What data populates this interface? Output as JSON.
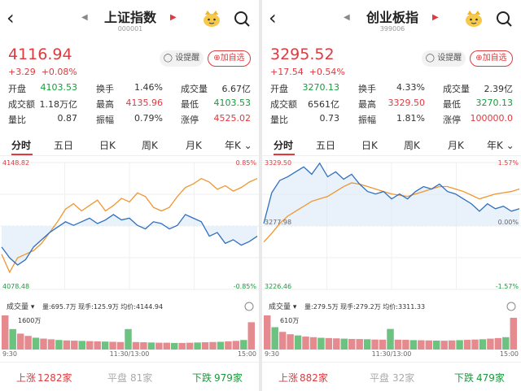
{
  "left": {
    "title": "上证指数",
    "code": "000001",
    "price": "4116.94",
    "change": "+3.29",
    "change_pct": "+0.08%",
    "remind_label": "设提醒",
    "fav_label": "加自选",
    "stats": [
      {
        "label": "开盘",
        "value": "4103.53",
        "color": "g"
      },
      {
        "label": "换手",
        "value": "1.46%",
        "color": "k"
      },
      {
        "label": "成交量",
        "value": "6.67亿",
        "color": "k"
      },
      {
        "label": "成交额",
        "value": "1.18万亿",
        "color": "k"
      },
      {
        "label": "最高",
        "value": "4135.96",
        "color": "r"
      },
      {
        "label": "最低",
        "value": "4103.53",
        "color": "g"
      },
      {
        "label": "量比",
        "value": "0.87",
        "color": "k"
      },
      {
        "label": "振幅",
        "value": "0.79%",
        "color": "k"
      },
      {
        "label": "涨停",
        "value": "4525.02",
        "color": "r"
      }
    ],
    "tabs": [
      "分时",
      "五日",
      "日K",
      "周K",
      "月K",
      "年K"
    ],
    "chart_data": {
      "type": "line",
      "y_max": "4148.82",
      "y_min": "4078.48",
      "pct_max": "0.85%",
      "pct_min": "-0.85%",
      "ylim": [
        4078.48,
        4148.82
      ],
      "series": [
        {
          "color": "#f0962f",
          "values": [
            4098,
            4088,
            4096,
            4098,
            4100,
            4104,
            4110,
            4116,
            4123,
            4126,
            4122,
            4125,
            4128,
            4122,
            4125,
            4129,
            4127,
            4132,
            4130,
            4124,
            4122,
            4124,
            4130,
            4135,
            4137,
            4140,
            4138,
            4134,
            4136,
            4133,
            4135,
            4138,
            4140
          ]
        },
        {
          "color": "#2f6fbf",
          "values": [
            4102,
            4096,
            4092,
            4095,
            4102,
            4106,
            4110,
            4113,
            4116,
            4114,
            4116,
            4118,
            4115,
            4117,
            4120,
            4117,
            4118,
            4114,
            4112,
            4116,
            4115,
            4112,
            4114,
            4120,
            4118,
            4116,
            4108,
            4110,
            4104,
            4106,
            4103,
            4105,
            4108
          ]
        }
      ]
    },
    "volume": {
      "label": "成交量",
      "info": "量:695.7万  现手:125.9万  均价:4144.94",
      "max": "1600万",
      "x_labels": [
        "9:30",
        "11:30/13:00",
        "15:00"
      ],
      "values": [
        1500,
        900,
        700,
        600,
        520,
        480,
        450,
        420,
        400,
        390,
        380,
        370,
        360,
        350,
        340,
        330,
        900,
        330,
        320,
        310,
        300,
        300,
        290,
        290,
        300,
        310,
        320,
        330,
        340,
        360,
        380,
        420,
        1200
      ]
    },
    "footer": {
      "up": "上涨",
      "up_n": "1282家",
      "flat": "平盘",
      "flat_n": "81家",
      "down": "下跌",
      "down_n": "979家"
    }
  },
  "right": {
    "title": "创业板指",
    "code": "399006",
    "price": "3295.52",
    "change": "+17.54",
    "change_pct": "+0.54%",
    "remind_label": "设提醒",
    "fav_label": "加自选",
    "stats": [
      {
        "label": "开盘",
        "value": "3270.13",
        "color": "g"
      },
      {
        "label": "换手",
        "value": "4.33%",
        "color": "k"
      },
      {
        "label": "成交量",
        "value": "2.39亿",
        "color": "k"
      },
      {
        "label": "成交额",
        "value": "6561亿",
        "color": "k"
      },
      {
        "label": "最高",
        "value": "3329.50",
        "color": "r"
      },
      {
        "label": "最低",
        "value": "3270.13",
        "color": "g"
      },
      {
        "label": "量比",
        "value": "0.73",
        "color": "k"
      },
      {
        "label": "振幅",
        "value": "1.81%",
        "color": "k"
      },
      {
        "label": "涨停",
        "value": "100000.0",
        "color": "r"
      }
    ],
    "tabs": [
      "分时",
      "五日",
      "日K",
      "周K",
      "月K",
      "年K"
    ],
    "chart_data": {
      "type": "line",
      "y_max": "3329.50",
      "y_min": "3226.46",
      "y_mid": "3277.98",
      "pct_max": "1.57%",
      "pct_mid": "0.00%",
      "pct_min": "-1.57%",
      "ylim": [
        3226.46,
        3329.5
      ],
      "series": [
        {
          "color": "#f0962f",
          "values": [
            3265,
            3272,
            3280,
            3286,
            3290,
            3294,
            3298,
            3300,
            3302,
            3306,
            3310,
            3313,
            3312,
            3310,
            3308,
            3306,
            3304,
            3303,
            3302,
            3304,
            3306,
            3308,
            3310,
            3310,
            3308,
            3306,
            3303,
            3300,
            3302,
            3304,
            3305,
            3306,
            3308
          ]
        },
        {
          "color": "#2f6fbf",
          "values": [
            3280,
            3305,
            3315,
            3318,
            3322,
            3326,
            3320,
            3329,
            3318,
            3322,
            3316,
            3320,
            3312,
            3306,
            3304,
            3306,
            3300,
            3304,
            3300,
            3306,
            3310,
            3308,
            3312,
            3306,
            3304,
            3300,
            3296,
            3290,
            3296,
            3292,
            3294,
            3290,
            3292
          ]
        }
      ]
    },
    "volume": {
      "label": "成交量",
      "info": "量:279.5万  现手:279.2万  均价:3311.33",
      "max": "610万",
      "x_labels": [
        "9:30",
        "11:30/13:00",
        "15:00"
      ],
      "values": [
        580,
        380,
        300,
        260,
        240,
        220,
        210,
        200,
        195,
        190,
        185,
        180,
        178,
        175,
        170,
        168,
        350,
        168,
        165,
        160,
        158,
        155,
        152,
        150,
        155,
        160,
        165,
        170,
        175,
        185,
        195,
        210,
        540
      ]
    },
    "footer": {
      "up": "上涨",
      "up_n": "882家",
      "flat": "平盘",
      "flat_n": "32家",
      "down": "下跌",
      "down_n": "479家"
    }
  }
}
